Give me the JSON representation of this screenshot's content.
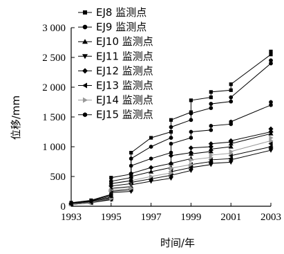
{
  "chart_data": {
    "type": "line",
    "xlabel": "时间/年",
    "ylabel": "位移/mm",
    "xlim": [
      1993,
      2003
    ],
    "ylim": [
      0,
      3000
    ],
    "x_ticks": [
      "1993",
      "1995",
      "1997",
      "1999",
      "2001",
      "2003"
    ],
    "y_ticks": [
      "0",
      "500",
      "1 000",
      "1 500",
      "2 000",
      "2 500",
      "3 000"
    ],
    "grid": false,
    "legend_position": "top-left",
    "x": [
      1993.0,
      1994.0,
      1995.0,
      1995.0,
      1996.0,
      1996.0,
      1997.0,
      1998.0,
      1998.0,
      1999.0,
      1999.0,
      2000.0,
      2000.0,
      2001.0,
      2001.0,
      2003.0,
      2003.0
    ],
    "series": [
      {
        "name": "EJ8 监测点",
        "marker": "square",
        "color": "#000000",
        "values": [
          60,
          100,
          200,
          480,
          540,
          900,
          1150,
          1250,
          1450,
          1580,
          1780,
          1830,
          1920,
          1950,
          2050,
          2550,
          2600
        ]
      },
      {
        "name": "EJ9 监测点",
        "marker": "circle",
        "color": "#000000",
        "values": [
          50,
          90,
          190,
          420,
          480,
          800,
          1000,
          1150,
          1330,
          1450,
          1560,
          1650,
          1720,
          1760,
          1830,
          2400,
          2450
        ]
      },
      {
        "name": "EJ10 监测点",
        "marker": "triangle-up",
        "color": "#000000",
        "values": [
          40,
          70,
          140,
          300,
          330,
          500,
          580,
          650,
          720,
          800,
          880,
          920,
          960,
          1000,
          1050,
          1220,
          1270
        ]
      },
      {
        "name": "EJ11 监测点",
        "marker": "triangle-down",
        "color": "#000000",
        "values": [
          30,
          60,
          110,
          230,
          250,
          360,
          420,
          470,
          520,
          600,
          650,
          700,
          720,
          740,
          780,
          940,
          970
        ]
      },
      {
        "name": "EJ12 监测点",
        "marker": "diamond",
        "color": "#000000",
        "values": [
          40,
          70,
          150,
          340,
          380,
          550,
          650,
          720,
          850,
          900,
          980,
          1000,
          1050,
          1080,
          1100,
          1250,
          1300
        ]
      },
      {
        "name": "EJ13 监测点",
        "marker": "triangle-left",
        "color": "#000000",
        "values": [
          30,
          60,
          120,
          250,
          280,
          400,
          460,
          520,
          580,
          650,
          700,
          750,
          780,
          800,
          850,
          1000,
          1050
        ]
      },
      {
        "name": "EJ14 监测点",
        "marker": "triangle-right",
        "color": "#999999",
        "values": [
          35,
          65,
          130,
          270,
          300,
          430,
          500,
          560,
          640,
          700,
          780,
          820,
          860,
          890,
          920,
          1100,
          1150
        ]
      },
      {
        "name": "EJ15 监测点",
        "marker": "hexagon",
        "color": "#000000",
        "values": [
          45,
          80,
          170,
          380,
          430,
          680,
          800,
          900,
          1050,
          1150,
          1250,
          1280,
          1350,
          1380,
          1420,
          1700,
          1750
        ]
      }
    ]
  }
}
